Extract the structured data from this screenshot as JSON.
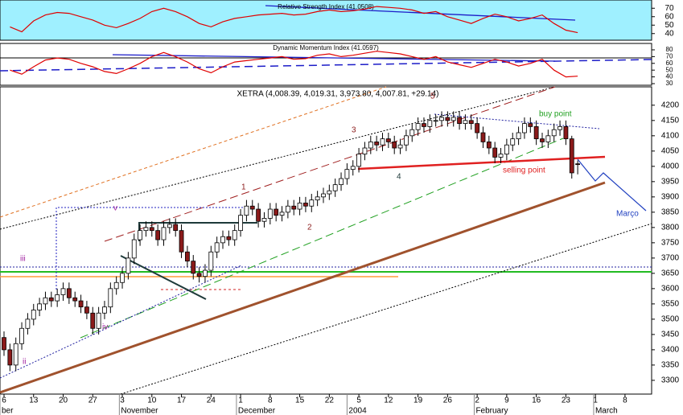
{
  "chart_data": [
    {
      "type": "line",
      "title": "Relative Strength Index (41.0508)",
      "ylim": [
        35,
        75
      ],
      "yticks": [
        70,
        60,
        50,
        40
      ],
      "x": [
        1,
        3,
        5,
        7,
        9,
        11,
        13,
        15,
        17,
        19,
        21,
        23,
        25,
        27,
        29,
        31,
        33,
        35,
        37,
        39,
        41,
        43,
        45,
        47,
        49,
        51,
        53,
        55,
        57,
        59,
        61,
        63,
        65,
        67,
        69,
        71,
        73,
        75,
        77,
        79,
        81,
        83,
        85,
        87,
        89,
        91,
        93,
        95,
        97
      ],
      "series": [
        {
          "color": "#e00000",
          "values": [
            48,
            42,
            55,
            62,
            65,
            64,
            60,
            56,
            50,
            47,
            52,
            58,
            66,
            70,
            66,
            60,
            52,
            48,
            54,
            58,
            60,
            62,
            63,
            64,
            62,
            63,
            66,
            68,
            66,
            67,
            69,
            72,
            71,
            70,
            68,
            64,
            66,
            60,
            56,
            52,
            58,
            63,
            60,
            55,
            58,
            62,
            52,
            44,
            41.0508
          ]
        }
      ]
    },
    {
      "type": "line",
      "title": "Dynamic Momentum Index (41.0597)",
      "ylim": [
        27.6,
        88.3
      ],
      "yticks": [
        80,
        70,
        60,
        50,
        40,
        30
      ],
      "x": [
        1,
        3,
        5,
        7,
        9,
        11,
        13,
        15,
        17,
        19,
        21,
        23,
        25,
        27,
        29,
        31,
        33,
        35,
        37,
        39,
        41,
        43,
        45,
        47,
        49,
        51,
        53,
        55,
        57,
        59,
        61,
        63,
        65,
        67,
        69,
        71,
        73,
        75,
        77,
        79,
        81,
        83,
        85,
        87,
        89,
        91,
        93,
        95,
        97
      ],
      "series": [
        {
          "color": "#e00000",
          "values": [
            50,
            44,
            55,
            65,
            68,
            66,
            60,
            55,
            48,
            45,
            52,
            60,
            70,
            76,
            70,
            62,
            52,
            46,
            55,
            62,
            64,
            66,
            68,
            70,
            66,
            67,
            72,
            74,
            70,
            72,
            75,
            78,
            76,
            74,
            70,
            66,
            70,
            62,
            58,
            54,
            60,
            66,
            62,
            56,
            60,
            66,
            50,
            40,
            41.0597
          ]
        }
      ]
    },
    {
      "type": "candlestick",
      "title": "XETRA (4,008.39, 4,019.31, 3,973.80, 4,007.81, +29.14)",
      "ylim": [
        3255,
        4260
      ],
      "xlim": [
        -0.68,
        109.5
      ],
      "yticks": [
        4200,
        4150,
        4100,
        4050,
        4000,
        3950,
        3900,
        3850,
        3800,
        3750,
        3700,
        3650,
        3600,
        3550,
        3500,
        3450,
        3400,
        3350,
        3300
      ],
      "xticks": [
        {
          "value": 0,
          "label": "6"
        },
        {
          "value": 5,
          "label": "13"
        },
        {
          "value": 10,
          "label": "20"
        },
        {
          "value": 15,
          "label": "27"
        },
        {
          "value": 20,
          "label": "3"
        },
        {
          "value": 25,
          "label": "10"
        },
        {
          "value": 30,
          "label": "17"
        },
        {
          "value": 35,
          "label": "24"
        },
        {
          "value": 40,
          "label": "1"
        },
        {
          "value": 45,
          "label": "8"
        },
        {
          "value": 50,
          "label": "15"
        },
        {
          "value": 55,
          "label": "22"
        },
        {
          "value": 60,
          "label": "5"
        },
        {
          "value": 65,
          "label": "12"
        },
        {
          "value": 70,
          "label": "19"
        },
        {
          "value": 75,
          "label": "26"
        },
        {
          "value": 80,
          "label": "2"
        },
        {
          "value": 85,
          "label": "9"
        },
        {
          "value": 90,
          "label": "16"
        },
        {
          "value": 95,
          "label": "23"
        },
        {
          "value": 100,
          "label": "1"
        },
        {
          "value": 105,
          "label": "8"
        }
      ],
      "months": [
        {
          "value": -0.68,
          "label": "ber"
        },
        {
          "value": 19.5,
          "label": "November"
        },
        {
          "value": 39.3,
          "label": "December"
        },
        {
          "value": 58,
          "label": "2004"
        },
        {
          "value": 79.5,
          "label": "February"
        },
        {
          "value": 99.7,
          "label": "March"
        }
      ],
      "up_color": "#ffffff",
      "down_color": "#8b1a1a",
      "open": [
        3440,
        3400,
        3350,
        3420,
        3470,
        3500,
        3530,
        3550,
        3570,
        3560,
        3580,
        3600,
        3570,
        3560,
        3540,
        3520,
        3470,
        3520,
        3540,
        3600,
        3620,
        3650,
        3700,
        3760,
        3790,
        3800,
        3790,
        3760,
        3800,
        3810,
        3790,
        3720,
        3690,
        3650,
        3640,
        3660,
        3720,
        3750,
        3770,
        3760,
        3790,
        3840,
        3870,
        3860,
        3820,
        3830,
        3860,
        3840,
        3850,
        3870,
        3860,
        3880,
        3870,
        3890,
        3900,
        3910,
        3920,
        3940,
        3960,
        3990,
        4000,
        4040,
        4060,
        4080,
        4070,
        4090,
        4080,
        4060,
        4070,
        4100,
        4120,
        4140,
        4130,
        4150,
        4150,
        4160,
        4150,
        4160,
        4140,
        4150,
        4140,
        4110,
        4080,
        4060,
        4030,
        4040,
        4070,
        4090,
        4110,
        4140,
        4130,
        4090,
        4080,
        4100,
        4120,
        4130,
        4090,
        4008.39
      ],
      "high": [
        3460,
        3420,
        3440,
        3490,
        3520,
        3550,
        3570,
        3590,
        3590,
        3600,
        3620,
        3620,
        3590,
        3580,
        3560,
        3540,
        3540,
        3560,
        3620,
        3640,
        3670,
        3720,
        3780,
        3810,
        3820,
        3820,
        3810,
        3820,
        3830,
        3830,
        3810,
        3740,
        3710,
        3670,
        3680,
        3740,
        3770,
        3790,
        3790,
        3810,
        3860,
        3890,
        3890,
        3880,
        3850,
        3880,
        3880,
        3870,
        3890,
        3890,
        3900,
        3900,
        3910,
        3920,
        3930,
        3940,
        3960,
        3980,
        4010,
        4020,
        4060,
        4080,
        4100,
        4100,
        4110,
        4110,
        4100,
        4090,
        4120,
        4140,
        4160,
        4160,
        4170,
        4170,
        4180,
        4180,
        4180,
        4180,
        4170,
        4170,
        4160,
        4130,
        4100,
        4080,
        4060,
        4090,
        4110,
        4130,
        4160,
        4160,
        4150,
        4110,
        4120,
        4140,
        4150,
        4150,
        4100,
        4019.31
      ],
      "low": [
        3380,
        3330,
        3330,
        3400,
        3450,
        3480,
        3510,
        3530,
        3540,
        3540,
        3560,
        3550,
        3540,
        3520,
        3500,
        3450,
        3450,
        3500,
        3520,
        3580,
        3600,
        3630,
        3680,
        3740,
        3770,
        3770,
        3740,
        3740,
        3780,
        3770,
        3700,
        3670,
        3630,
        3620,
        3620,
        3640,
        3700,
        3730,
        3740,
        3740,
        3770,
        3820,
        3840,
        3800,
        3800,
        3810,
        3820,
        3820,
        3830,
        3840,
        3840,
        3850,
        3850,
        3870,
        3880,
        3890,
        3900,
        3920,
        3940,
        3970,
        3980,
        4020,
        4040,
        4050,
        4050,
        4060,
        4040,
        4040,
        4050,
        4080,
        4100,
        4110,
        4110,
        4130,
        4130,
        4130,
        4130,
        4120,
        4120,
        4120,
        4090,
        4060,
        4040,
        4010,
        4010,
        4020,
        4050,
        4070,
        4090,
        4110,
        4070,
        4060,
        4060,
        4080,
        4100,
        4070,
        3960,
        3973.8
      ],
      "close": [
        3400,
        3350,
        3420,
        3470,
        3500,
        3530,
        3550,
        3570,
        3560,
        3580,
        3600,
        3570,
        3560,
        3540,
        3520,
        3470,
        3520,
        3540,
        3600,
        3620,
        3650,
        3700,
        3760,
        3790,
        3800,
        3790,
        3760,
        3800,
        3810,
        3790,
        3720,
        3690,
        3650,
        3640,
        3660,
        3720,
        3750,
        3770,
        3760,
        3790,
        3840,
        3870,
        3860,
        3820,
        3830,
        3860,
        3840,
        3850,
        3870,
        3860,
        3880,
        3870,
        3890,
        3900,
        3910,
        3920,
        3940,
        3960,
        3990,
        4000,
        4040,
        4060,
        4080,
        4070,
        4090,
        4080,
        4060,
        4070,
        4100,
        4120,
        4140,
        4130,
        4150,
        4150,
        4160,
        4150,
        4160,
        4140,
        4150,
        4140,
        4110,
        4080,
        4060,
        4030,
        4040,
        4070,
        4090,
        4110,
        4140,
        4130,
        4090,
        4080,
        4100,
        4120,
        4130,
        4090,
        3978.67,
        4007.81
      ],
      "annotations": [
        "5",
        "3",
        "1",
        "2",
        "4",
        "iii",
        "ii",
        "iv",
        "v",
        "buy point",
        "selling point",
        "Março"
      ]
    }
  ]
}
